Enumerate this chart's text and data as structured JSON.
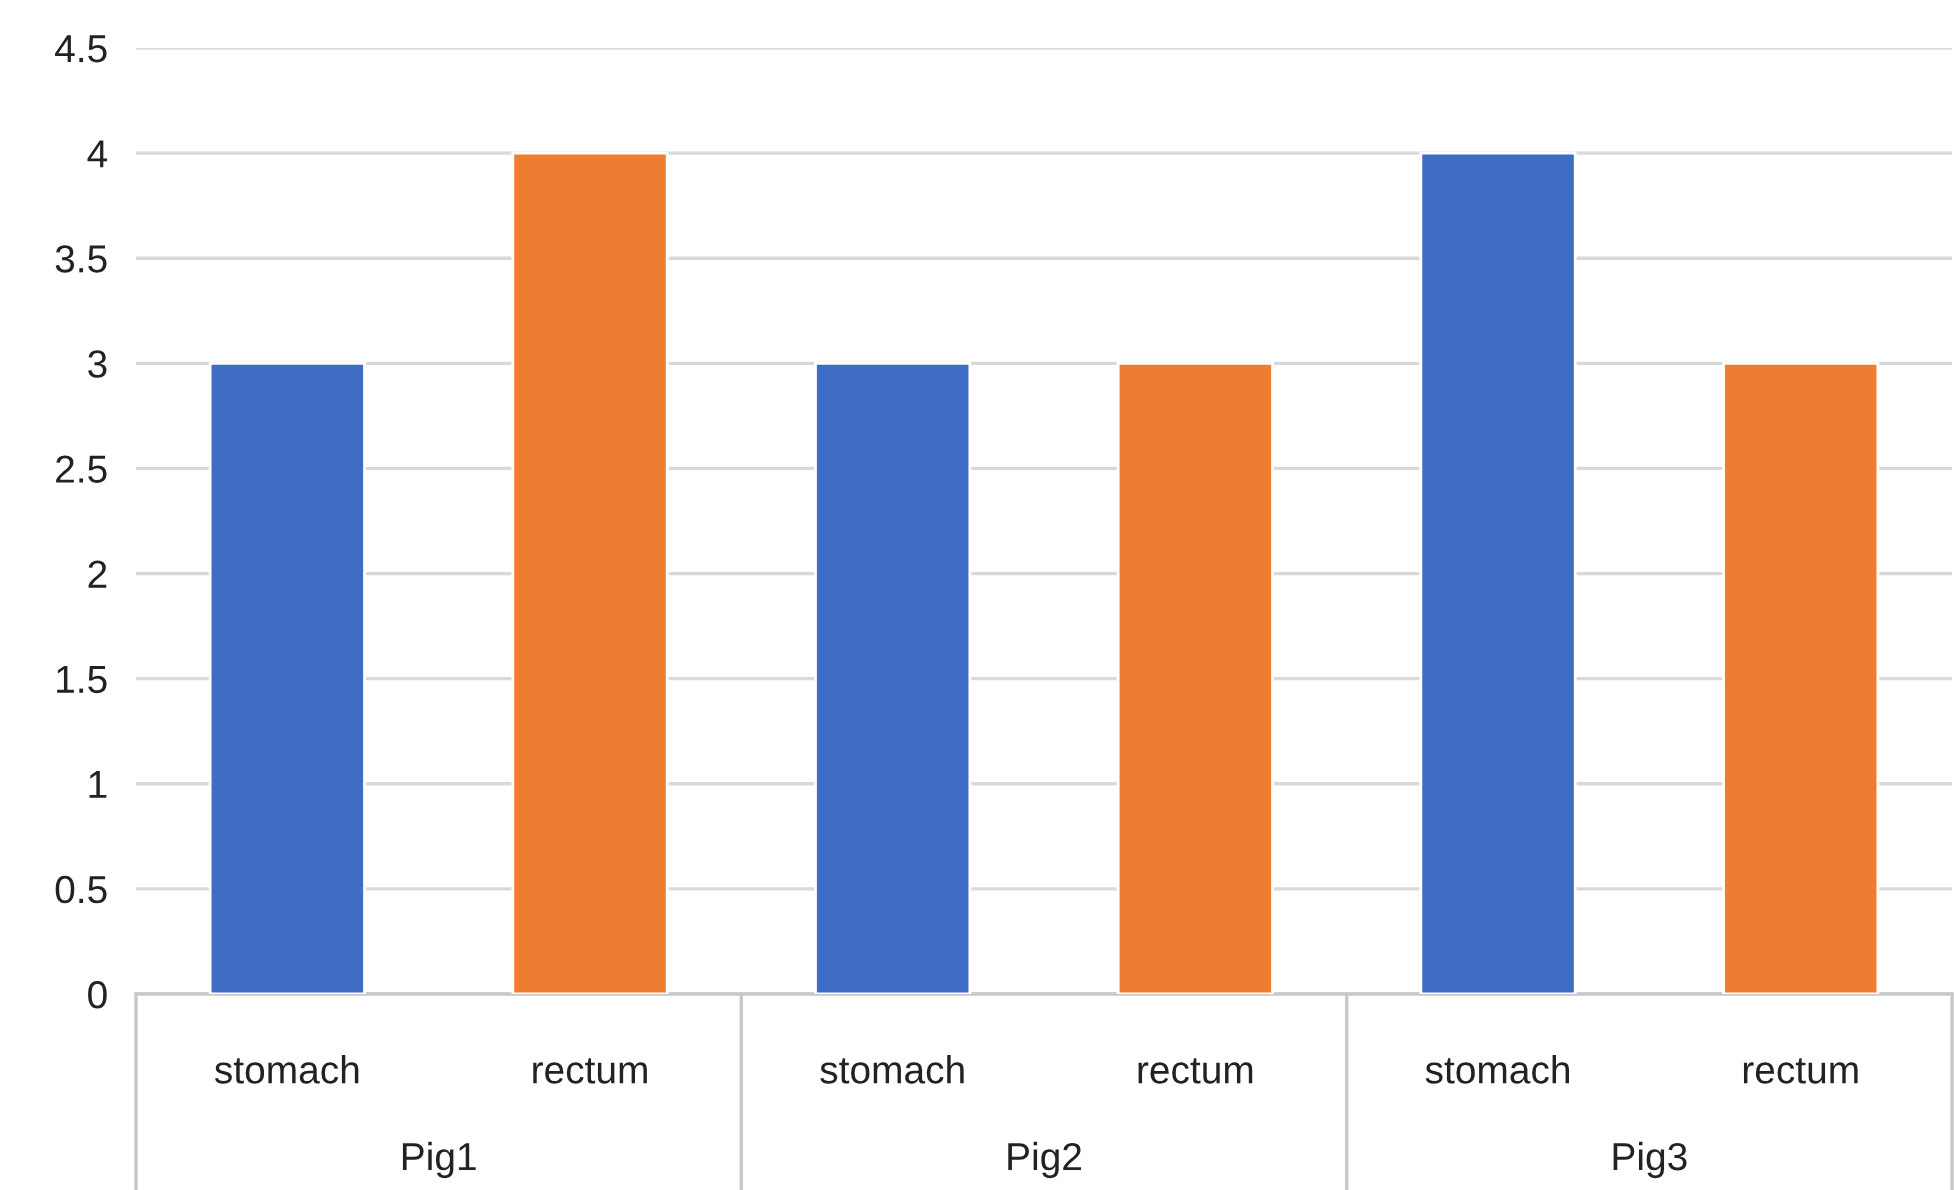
{
  "chart_data": {
    "type": "bar",
    "categories": [
      "stomach",
      "rectum",
      "stomach",
      "rectum",
      "stomach",
      "rectum"
    ],
    "values": [
      3,
      4,
      3,
      3,
      4,
      3
    ],
    "colors": [
      "#3f6cc4",
      "#ed7d31",
      "#3f6cc4",
      "#ed7d31",
      "#3f6cc4",
      "#ed7d31"
    ],
    "annotations": [
      "Pig1",
      "Pig2",
      "Pig3"
    ],
    "ylim": [
      0,
      4.5
    ],
    "yticks": [
      0,
      0.5,
      1,
      1.5,
      2,
      2.5,
      3,
      3.5,
      4,
      4.5
    ],
    "grid": "y",
    "legend": false
  }
}
